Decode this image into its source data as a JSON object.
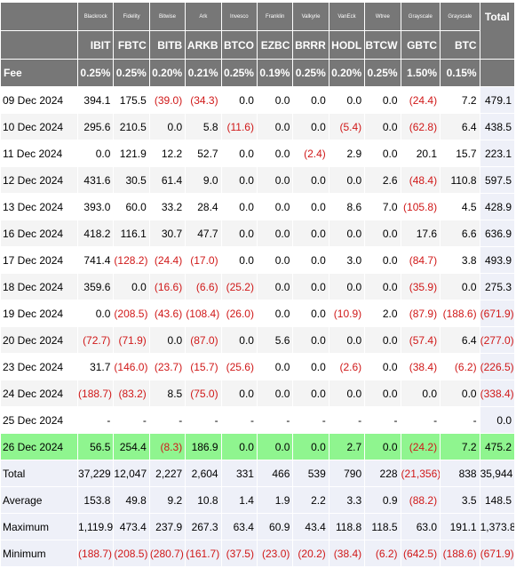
{
  "issuers": [
    "Blackrock",
    "Fidelity",
    "Bitwise",
    "Ark",
    "Invesco",
    "Franklin",
    "Valkyrie",
    "VanEck",
    "Wtree",
    "Grayscale",
    "Grayscale"
  ],
  "total_label": "Total",
  "tickers": [
    "IBIT",
    "FBTC",
    "BITB",
    "ARKB",
    "BTCO",
    "EZBC",
    "BRRR",
    "HODL",
    "BTCW",
    "GBTC",
    "BTC"
  ],
  "fee_label": "Fee",
  "fees": [
    "0.25%",
    "0.25%",
    "0.20%",
    "0.21%",
    "0.25%",
    "0.19%",
    "0.25%",
    "0.20%",
    "0.25%",
    "1.50%",
    "0.15%"
  ],
  "rows": [
    {
      "date": "09 Dec 2024",
      "values": [
        "394.1",
        "175.5",
        "(39.0)",
        "(34.3)",
        "0.0",
        "0.0",
        "0.0",
        "0.0",
        "0.0",
        "(24.4)",
        "7.2"
      ],
      "total": "479.1"
    },
    {
      "date": "10 Dec 2024",
      "values": [
        "295.6",
        "210.5",
        "0.0",
        "5.8",
        "(11.6)",
        "0.0",
        "0.0",
        "(5.4)",
        "0.0",
        "(62.8)",
        "6.4"
      ],
      "total": "438.5"
    },
    {
      "date": "11 Dec 2024",
      "values": [
        "0.0",
        "121.9",
        "12.2",
        "52.7",
        "0.0",
        "0.0",
        "(2.4)",
        "2.9",
        "0.0",
        "20.1",
        "15.7"
      ],
      "total": "223.1"
    },
    {
      "date": "12 Dec 2024",
      "values": [
        "431.6",
        "30.5",
        "61.4",
        "9.0",
        "0.0",
        "0.0",
        "0.0",
        "0.0",
        "2.6",
        "(48.4)",
        "110.8"
      ],
      "total": "597.5"
    },
    {
      "date": "13 Dec 2024",
      "values": [
        "393.0",
        "60.0",
        "33.2",
        "28.4",
        "0.0",
        "0.0",
        "0.0",
        "8.6",
        "7.0",
        "(105.8)",
        "4.5"
      ],
      "total": "428.9"
    },
    {
      "date": "16 Dec 2024",
      "values": [
        "418.2",
        "116.1",
        "30.7",
        "47.7",
        "0.0",
        "0.0",
        "0.0",
        "0.0",
        "0.0",
        "17.6",
        "6.6"
      ],
      "total": "636.9"
    },
    {
      "date": "17 Dec 2024",
      "values": [
        "741.4",
        "(128.2)",
        "(24.4)",
        "(17.0)",
        "0.0",
        "0.0",
        "0.0",
        "3.0",
        "0.0",
        "(84.7)",
        "3.8"
      ],
      "total": "493.9"
    },
    {
      "date": "18 Dec 2024",
      "values": [
        "359.6",
        "0.0",
        "(16.6)",
        "(6.6)",
        "(25.2)",
        "0.0",
        "0.0",
        "0.0",
        "0.0",
        "(35.9)",
        "0.0"
      ],
      "total": "275.3"
    },
    {
      "date": "19 Dec 2024",
      "values": [
        "0.0",
        "(208.5)",
        "(43.6)",
        "(108.4)",
        "(26.0)",
        "0.0",
        "0.0",
        "(10.9)",
        "2.0",
        "(87.9)",
        "(188.6)"
      ],
      "total": "(671.9)"
    },
    {
      "date": "20 Dec 2024",
      "values": [
        "(72.7)",
        "(71.9)",
        "0.0",
        "(87.0)",
        "0.0",
        "5.6",
        "0.0",
        "0.0",
        "0.0",
        "(57.4)",
        "6.4"
      ],
      "total": "(277.0)"
    },
    {
      "date": "23 Dec 2024",
      "values": [
        "31.7",
        "(146.0)",
        "(23.7)",
        "(15.7)",
        "(25.6)",
        "0.0",
        "0.0",
        "(2.6)",
        "0.0",
        "(38.4)",
        "(6.2)"
      ],
      "total": "(226.5)"
    },
    {
      "date": "24 Dec 2024",
      "values": [
        "(188.7)",
        "(83.2)",
        "8.5",
        "(75.0)",
        "0.0",
        "0.0",
        "0.0",
        "0.0",
        "0.0",
        "0.0",
        "0.0"
      ],
      "total": "(338.4)"
    },
    {
      "date": "25 Dec 2024",
      "values": [
        "-",
        "-",
        "-",
        "-",
        "-",
        "-",
        "-",
        "-",
        "-",
        "-",
        "-"
      ],
      "total": "0.0"
    },
    {
      "date": "26 Dec 2024",
      "values": [
        "56.5",
        "254.4",
        "(8.3)",
        "186.9",
        "0.0",
        "0.0",
        "0.0",
        "2.7",
        "0.0",
        "(24.2)",
        "7.2"
      ],
      "total": "475.2",
      "highlight": true
    }
  ],
  "summary": [
    {
      "label": "Total",
      "values": [
        "37,229",
        "12,047",
        "2,227",
        "2,604",
        "331",
        "466",
        "539",
        "790",
        "228",
        "(21,356)",
        "838"
      ],
      "total": "35,944"
    },
    {
      "label": "Average",
      "values": [
        "153.8",
        "49.8",
        "9.2",
        "10.8",
        "1.4",
        "1.9",
        "2.2",
        "3.3",
        "0.9",
        "(88.2)",
        "3.5"
      ],
      "total": "148.5"
    },
    {
      "label": "Maximum",
      "values": [
        "1,119.9",
        "473.4",
        "237.9",
        "267.3",
        "63.4",
        "60.9",
        "43.4",
        "118.8",
        "118.5",
        "63.0",
        "191.1"
      ],
      "total": "1,373.8"
    },
    {
      "label": "Minimum",
      "values": [
        "(188.7)",
        "(208.5)",
        "(280.7)",
        "(161.7)",
        "(37.5)",
        "(23.0)",
        "(20.2)",
        "(38.4)",
        "(6.2)",
        "(642.5)",
        "(188.6)"
      ],
      "total": "(671.9)"
    }
  ],
  "colors": {
    "header_bg": "#777777",
    "negative": "#d01818",
    "highlight_row": "#8ff58f",
    "summary_bg": "#eef0f8"
  }
}
